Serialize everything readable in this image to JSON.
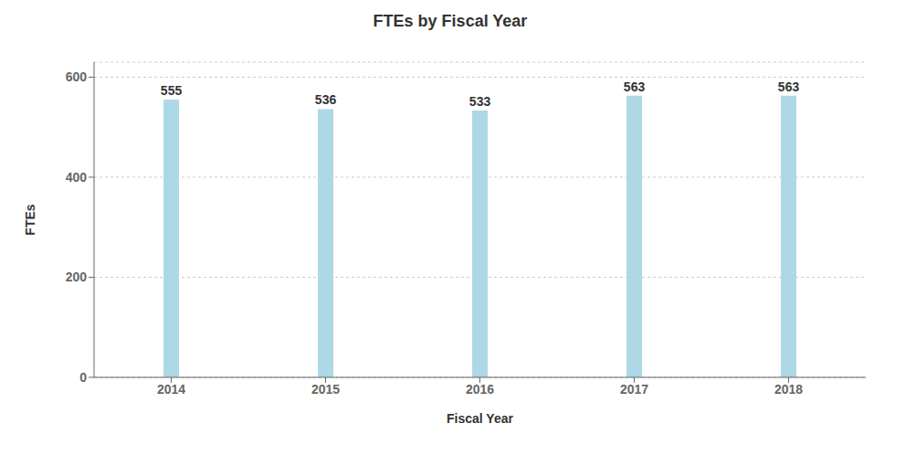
{
  "chart_data": {
    "type": "bar",
    "title": "FTEs by Fiscal Year",
    "xlabel": "Fiscal Year",
    "ylabel": "FTEs",
    "categories": [
      "2014",
      "2015",
      "2016",
      "2017",
      "2018"
    ],
    "values": [
      555,
      536,
      533,
      563,
      563
    ],
    "color": "#add8e6",
    "ylim": [
      0,
      630
    ],
    "yticks": [
      0,
      200,
      400,
      600
    ],
    "grid": true,
    "data_labels": true
  }
}
